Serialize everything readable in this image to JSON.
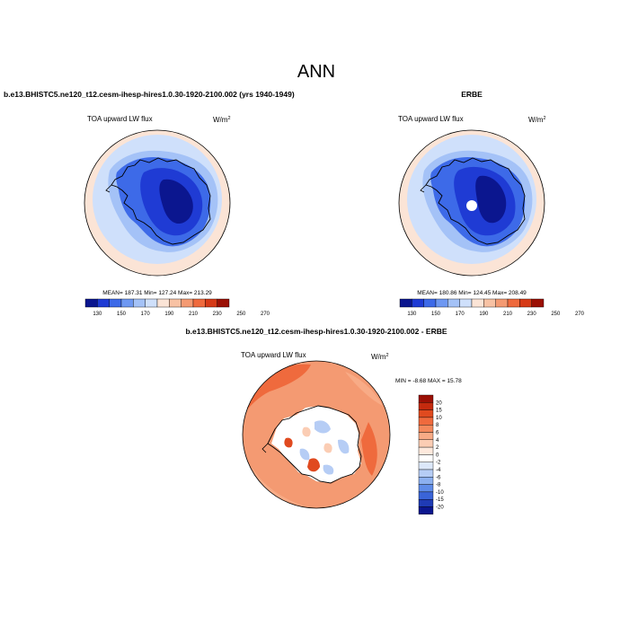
{
  "page_title": "ANN",
  "chart_data": [
    {
      "type": "heatmap",
      "projection": "south-polar-stereographic",
      "case_title": "b.e13.BHISTC5.ne120_t12.cesm-ihesp-hires1.0.30-1920-2100.002 (yrs 1940-1949)",
      "variable": "TOA upward LW flux",
      "units": "W/m",
      "units_exp": "2",
      "stats": "MEAN= 187.31  Min= 127.24  Max= 213.29",
      "colorbar": {
        "levels": [
          "130",
          "150",
          "170",
          "190",
          "210",
          "230",
          "250",
          "270"
        ],
        "colors": [
          "#0b168f",
          "#1f3bd4",
          "#3d6ae8",
          "#6e98f2",
          "#a4c2f7",
          "#cfe0fb",
          "#fbe4d6",
          "#f8c2a4",
          "#f49a72",
          "#ef6a3d",
          "#d63a17",
          "#9b1005"
        ]
      },
      "field": {
        "ocean_far": "#fbe4d6",
        "ocean_near": "#cfe0fb",
        "coast_band": "#a4c2f7",
        "ice_outer": "#3d6ae8",
        "ice_inner": "#1f3bd4",
        "ice_core": "#0b168f",
        "has_pole_gap": false
      }
    },
    {
      "type": "heatmap",
      "projection": "south-polar-stereographic",
      "case_title": "ERBE",
      "variable": "TOA upward LW flux",
      "units": "W/m",
      "units_exp": "2",
      "stats": "MEAN= 180.86  Min= 124.45  Max= 208.49",
      "colorbar": {
        "levels": [
          "130",
          "150",
          "170",
          "190",
          "210",
          "230",
          "250",
          "270"
        ],
        "colors": [
          "#0b168f",
          "#1f3bd4",
          "#3d6ae8",
          "#6e98f2",
          "#a4c2f7",
          "#cfe0fb",
          "#fbe4d6",
          "#f8c2a4",
          "#f49a72",
          "#ef6a3d",
          "#d63a17",
          "#9b1005"
        ]
      },
      "field": {
        "ocean_far": "#fbe4d6",
        "ocean_near": "#cfe0fb",
        "coast_band": "#a4c2f7",
        "ice_outer": "#3d6ae8",
        "ice_inner": "#1f3bd4",
        "ice_core": "#0b168f",
        "has_pole_gap": true
      }
    },
    {
      "type": "heatmap",
      "projection": "south-polar-stereographic",
      "case_title": "b.e13.BHISTC5.ne120_t12.cesm-ihesp-hires1.0.30-1920-2100.002 - ERBE",
      "variable": "TOA upward LW flux",
      "units": "W/m",
      "units_exp": "2",
      "stats": "MIN =  -8.68  MAX =  15.78",
      "colorbar": {
        "levels": [
          "20",
          "15",
          "10",
          "8",
          "6",
          "4",
          "2",
          "0",
          "-2",
          "-4",
          "-6",
          "-8",
          "-10",
          "-15",
          "-20"
        ],
        "colors": [
          "#9b1005",
          "#c42a0e",
          "#e04a1f",
          "#ef6a3d",
          "#f4895c",
          "#f8ab86",
          "#fbcdb4",
          "#fde9dd",
          "#ffffff",
          "#dce8fa",
          "#b6cdf5",
          "#8cb0ef",
          "#5f8ce8",
          "#3a64d8",
          "#1f3bb5",
          "#0b168f"
        ]
      },
      "field": {
        "ocean": "#f49a72",
        "ocean_warm": "#ef6a3d",
        "ocean_light": "#f8ab86",
        "land": "#ffffff",
        "land_blue": "#b6cdf5",
        "land_pink": "#fbcdb4",
        "land_red": "#e04a1f"
      }
    }
  ]
}
